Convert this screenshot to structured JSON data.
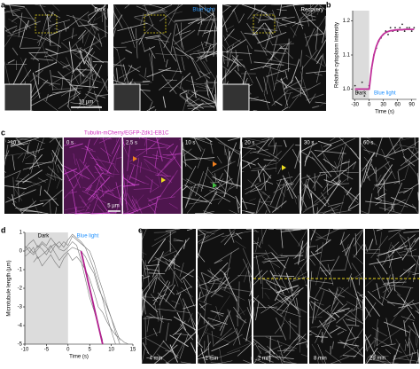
{
  "panel_labels": [
    "a",
    "b",
    "c",
    "d",
    "e"
  ],
  "panel_a": {
    "images": [
      "Dark",
      "Blue light",
      "Recovery"
    ],
    "scale_bar": "10 µm"
  },
  "panel_c": {
    "legend": "Tubulin-mCherry/EGFP-Zdk1-EB1C",
    "times": [
      "−10 s",
      "0 s",
      "2.5 s",
      "10 s",
      "20 s",
      "30 s",
      "60 s"
    ],
    "scale_bar": "5 µm"
  },
  "panel_e": {
    "times": [
      "−4 min",
      "−2 min",
      "2 min",
      "8 min",
      "29 min"
    ]
  },
  "chart_data": [
    {
      "type": "line",
      "y_label": "Relative cytoplasm intensity",
      "x_label": "Time (s)",
      "annotations": [
        {
          "text": "Dark",
          "color": "#000000"
        },
        {
          "text": "Blue light",
          "color": "#1e90ff"
        }
      ],
      "x": [
        -30,
        -25,
        -20,
        -15,
        -10,
        -5,
        0,
        5,
        10,
        15,
        20,
        25,
        30,
        35,
        40,
        45,
        50,
        55,
        60,
        65,
        70,
        75,
        80,
        85,
        90,
        95
      ],
      "series": [
        {
          "color": "#222222",
          "marker": "dot",
          "values": [
            1.01,
            0.99,
            1.0,
            1.02,
            0.98,
            1.0,
            1.01,
            1.06,
            1.1,
            1.12,
            1.14,
            1.15,
            1.16,
            1.17,
            1.16,
            1.18,
            1.17,
            1.18,
            1.17,
            1.18,
            1.19,
            1.17,
            1.18,
            1.18,
            1.17,
            1.18
          ]
        },
        {
          "color": "#c0309a",
          "values": [
            1.0,
            1.0,
            1.0,
            1.0,
            1.0,
            1.0,
            1.0,
            1.06,
            1.1,
            1.125,
            1.142,
            1.153,
            1.161,
            1.166,
            1.169,
            1.171,
            1.172,
            1.173,
            1.174,
            1.174,
            1.174,
            1.175,
            1.175,
            1.175,
            1.175,
            1.175
          ]
        }
      ],
      "xlim": [
        -35,
        100
      ],
      "xticks": [
        -30,
        0,
        30,
        60,
        90
      ],
      "ylim": [
        0.97,
        1.23
      ],
      "yticks": [
        {
          "value": 1,
          "label": "1.0"
        },
        1.1,
        1.2
      ],
      "shade": [
        -35,
        0
      ]
    },
    {
      "type": "line",
      "y_label": "Microtubule length (µm)",
      "x_label": "Time (s)",
      "annotations": [
        {
          "text": "Dark",
          "color": "#000000"
        },
        {
          "text": "Blue light",
          "color": "#1e90ff"
        }
      ],
      "x": [
        -10,
        -9,
        -8,
        -7,
        -6,
        -5,
        -4,
        -3,
        -2,
        -1,
        0,
        1,
        2,
        3,
        4,
        5,
        6,
        7,
        8,
        9,
        10,
        11,
        12,
        13,
        14,
        15
      ],
      "series": [
        {
          "color": "#777777",
          "values": [
            0,
            0.2,
            -0.1,
            0.3,
            0.1,
            -0.2,
            0.2,
            0.4,
            0.1,
            0,
            0.2,
            0.5,
            0.3,
            -0.5,
            -1.5,
            -2.5,
            -3.2,
            -4,
            -4.8,
            null,
            null,
            null,
            null,
            null,
            null,
            null
          ]
        },
        {
          "color": "#777777",
          "values": [
            -0.3,
            -0.1,
            0.2,
            -0.4,
            -0.2,
            0,
            0.3,
            -0.1,
            -0.5,
            -0.2,
            0,
            0.2,
            0.1,
            0,
            -0.3,
            -0.8,
            -1.2,
            -2,
            -2.5,
            -3,
            -3.6,
            -4.2,
            -4.8,
            null,
            null,
            null
          ]
        },
        {
          "color": "#777777",
          "values": [
            0.1,
            0.4,
            0.6,
            0.2,
            0.5,
            0.3,
            0.7,
            0.4,
            0.2,
            0.5,
            0.3,
            0.8,
            0.6,
            0.4,
            0.2,
            -0.4,
            -1,
            -1.8,
            -2.6,
            -3.5,
            -4.3,
            -5,
            null,
            null,
            null,
            null
          ]
        },
        {
          "color": "#777777",
          "values": [
            null,
            null,
            -0.6,
            -0.3,
            -0.8,
            -0.5,
            -0.2,
            -0.6,
            -0.9,
            -0.4,
            -0.1,
            -0.5,
            -0.3,
            -0.6,
            -1,
            -1.5,
            -2.2,
            -3,
            -3.3,
            -3.8,
            -4.2,
            -4.5,
            -4.7,
            -4.9,
            -5,
            null
          ]
        },
        {
          "color": "#777777",
          "values": [
            0.3,
            0,
            -0.2,
            0.1,
            0.4,
            0.2,
            -0.1,
            0.3,
            0.5,
            0.2,
            0.6,
            0.9,
            0.7,
            0.5,
            0.2,
            0,
            -0.6,
            -1.4,
            -2.1,
            -2.9,
            -3.6,
            -4.4,
            -5,
            null,
            null,
            null
          ]
        },
        {
          "color": "#b0208e",
          "values": [
            null,
            null,
            null,
            null,
            null,
            null,
            null,
            null,
            null,
            null,
            null,
            null,
            null,
            0,
            -1,
            -2,
            -3,
            -4,
            -5,
            null,
            null,
            null,
            null,
            null,
            null,
            null
          ]
        }
      ],
      "xlim": [
        -10,
        15
      ],
      "xticks": [
        -10,
        -5,
        0,
        5,
        10,
        15
      ],
      "ylim": [
        -5,
        1
      ],
      "yticks": [
        1,
        0,
        -1,
        -2,
        -3,
        -4,
        -5
      ],
      "shade": [
        -10,
        0
      ]
    }
  ]
}
